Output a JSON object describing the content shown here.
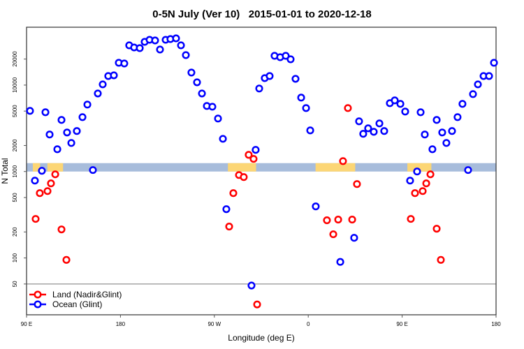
{
  "chart_data": {
    "type": "scatter",
    "title": "0-5N July (Ver 10)   2015-01-01 to 2020-12-18",
    "xlabel": "Longitude (deg E)",
    "ylabel": "N Total",
    "y_scale": "log",
    "xlim": [
      90,
      540
    ],
    "ylim": [
      22,
      46700
    ],
    "x_ticks": [
      {
        "value": 90,
        "label": "90 E"
      },
      {
        "value": 180,
        "label": "180"
      },
      {
        "value": 270,
        "label": "90 W"
      },
      {
        "value": 360,
        "label": "0"
      },
      {
        "value": 450,
        "label": "90 E"
      },
      {
        "value": 540,
        "label": "180"
      }
    ],
    "y_ticks": [
      {
        "value": 50,
        "label": "50"
      },
      {
        "value": 100,
        "label": "100"
      },
      {
        "value": 200,
        "label": "200"
      },
      {
        "value": 500,
        "label": "500"
      },
      {
        "value": 1000,
        "label": "1000"
      },
      {
        "value": 2000,
        "label": "2000"
      },
      {
        "value": 5000,
        "label": "5000"
      },
      {
        "value": 10000,
        "label": "10000"
      },
      {
        "value": 20000,
        "label": "20000"
      }
    ],
    "legend_position": "bottom-left",
    "legend_separator_value": 50,
    "mask_band": {
      "ymin": 1000,
      "ymax": 1250,
      "ocean_color": "#a7bcdb",
      "land_color": "#fcd675",
      "land_lon_ranges": [
        [
          96,
          103
        ],
        [
          110,
          125
        ],
        [
          283,
          310
        ],
        [
          367,
          405
        ],
        [
          455,
          478
        ]
      ]
    },
    "series": [
      {
        "name": "Land (Nadir&Glint)",
        "color": "#ff0000",
        "points": [
          [
            98.7,
            283
          ],
          [
            102.7,
            562
          ],
          [
            110.1,
            594
          ],
          [
            113.4,
            729
          ],
          [
            117.5,
            928
          ],
          [
            123.5,
            214
          ],
          [
            128.2,
            95
          ],
          [
            284.2,
            231
          ],
          [
            288.2,
            562
          ],
          [
            293.6,
            911
          ],
          [
            298.2,
            862
          ],
          [
            302.9,
            1560
          ],
          [
            307.6,
            1400
          ],
          [
            311.0,
            29
          ],
          [
            377.9,
            273
          ],
          [
            384.0,
            188
          ],
          [
            388.7,
            278
          ],
          [
            393.3,
            1320
          ],
          [
            398.0,
            5420
          ],
          [
            402.1,
            278
          ],
          [
            406.7,
            716
          ],
          [
            458.3,
            283
          ],
          [
            462.3,
            562
          ],
          [
            469.7,
            594
          ],
          [
            473.1,
            729
          ],
          [
            477.1,
            928
          ],
          [
            483.1,
            218
          ],
          [
            487.1,
            95
          ]
        ]
      },
      {
        "name": "Ocean (Glint)",
        "color": "#0000ff",
        "points": [
          [
            93.3,
            5030
          ],
          [
            98.0,
            785
          ],
          [
            104.7,
            1020
          ],
          [
            108.1,
            4850
          ],
          [
            112.1,
            2680
          ],
          [
            119.5,
            1810
          ],
          [
            123.5,
            3950
          ],
          [
            128.8,
            2830
          ],
          [
            132.9,
            2140
          ],
          [
            138.2,
            2940
          ],
          [
            143.6,
            4260
          ],
          [
            148.3,
            5950
          ],
          [
            153.6,
            1040
          ],
          [
            158.3,
            8000
          ],
          [
            163.0,
            10190
          ],
          [
            168.3,
            12730
          ],
          [
            173.7,
            12970
          ],
          [
            178.4,
            18120
          ],
          [
            183.7,
            17780
          ],
          [
            188.4,
            28820
          ],
          [
            193.1,
            27240
          ],
          [
            198.5,
            26750
          ],
          [
            203.2,
            31620
          ],
          [
            207.9,
            33420
          ],
          [
            213.2,
            32810
          ],
          [
            217.9,
            25780
          ],
          [
            223.3,
            33420
          ],
          [
            227.9,
            34060
          ],
          [
            233.3,
            34700
          ],
          [
            238.0,
            28820
          ],
          [
            242.7,
            22230
          ],
          [
            248.0,
            13970
          ],
          [
            253.4,
            10770
          ],
          [
            258.1,
            8000
          ],
          [
            262.8,
            5730
          ],
          [
            268.1,
            5620
          ],
          [
            273.5,
            4100
          ],
          [
            278.2,
            2390
          ],
          [
            281.5,
            367
          ],
          [
            305.6,
            48
          ],
          [
            309.6,
            1780
          ],
          [
            313.0,
            9120
          ],
          [
            318.3,
            12040
          ],
          [
            323.0,
            12730
          ],
          [
            327.7,
            21820
          ],
          [
            333.1,
            21020
          ],
          [
            338.4,
            21820
          ],
          [
            343.1,
            19880
          ],
          [
            347.8,
            11820
          ],
          [
            353.2,
            7160
          ],
          [
            357.9,
            5420
          ],
          [
            361.9,
            2990
          ],
          [
            367.2,
            395
          ],
          [
            390.7,
            90
          ],
          [
            404.0,
            171
          ],
          [
            408.7,
            3810
          ],
          [
            412.7,
            2730
          ],
          [
            417.4,
            3160
          ],
          [
            422.8,
            2880
          ],
          [
            428.2,
            3600
          ],
          [
            432.8,
            2940
          ],
          [
            438.2,
            6170
          ],
          [
            442.9,
            6650
          ],
          [
            448.3,
            6060
          ],
          [
            452.9,
            4940
          ],
          [
            457.6,
            785
          ],
          [
            464.3,
            1000
          ],
          [
            467.7,
            4850
          ],
          [
            471.7,
            2680
          ],
          [
            479.0,
            1810
          ],
          [
            483.1,
            3950
          ],
          [
            488.4,
            2830
          ],
          [
            492.4,
            2140
          ],
          [
            497.8,
            2940
          ],
          [
            503.1,
            4260
          ],
          [
            507.8,
            6060
          ],
          [
            513.2,
            1040
          ],
          [
            517.9,
            7860
          ],
          [
            522.6,
            10190
          ],
          [
            528.0,
            12730
          ],
          [
            533.3,
            12730
          ],
          [
            538.0,
            18120
          ]
        ]
      }
    ]
  }
}
